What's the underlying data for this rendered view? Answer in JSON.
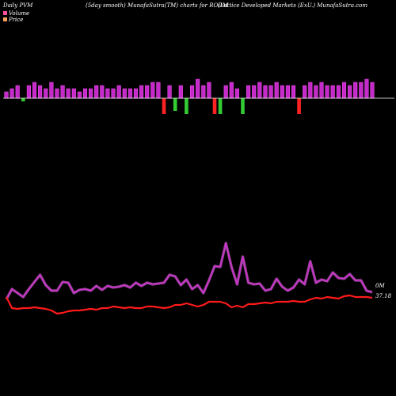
{
  "header": {
    "left": "Daily PVM",
    "center": "(5day smooth) MunafaSutra(TM) charts for RODM",
    "right": "(Lattice  Developed Markets (ExU.) MunafaSutra.com"
  },
  "legend": [
    {
      "label": "Volume",
      "color": "#ff4fa0"
    },
    {
      "label": "Price",
      "color": "#f7a35c"
    }
  ],
  "labels": {
    "volume_last": "0M",
    "price_last": "37.18"
  },
  "colors": {
    "background": "#000000",
    "bar_up": "#c42ac8",
    "bar_down": "#33cc33",
    "bar_up_edge": "#ff55ff",
    "axis_line": "#ffffff",
    "volume_line": "#cc33cc",
    "volume_glow": "#ff77ff",
    "price_line": "#ff1a1a"
  },
  "chart_data": {
    "type": "line",
    "series": [
      {
        "name": "Volume",
        "values": [
          378,
          365,
          370,
          375,
          365,
          356,
          347,
          360,
          367,
          367,
          356,
          357,
          370,
          366,
          365,
          367,
          361,
          366,
          361,
          363,
          362,
          360,
          363,
          357,
          361,
          357,
          359,
          358,
          357,
          347,
          349,
          360,
          353,
          365,
          360,
          370,
          354,
          336,
          337,
          307,
          337,
          359,
          324,
          357,
          359,
          358,
          367,
          365,
          352,
          362,
          367,
          363,
          353,
          359,
          330,
          357,
          353,
          355,
          344,
          351,
          352,
          346,
          354,
          354,
          367,
          369
        ]
      },
      {
        "name": "Price",
        "values": [
          375,
          389,
          390,
          389,
          389,
          388,
          389,
          390,
          392,
          396,
          395,
          393,
          392,
          392,
          391,
          390,
          391,
          389,
          389,
          387,
          388,
          389,
          388,
          389,
          389,
          387,
          387,
          388,
          389,
          388,
          385,
          385,
          383,
          385,
          387,
          385,
          381,
          381,
          381,
          383,
          388,
          386,
          388,
          384,
          384,
          383,
          382,
          383,
          381,
          381,
          381,
          380,
          381,
          381,
          378,
          376,
          377,
          375,
          376,
          377,
          374,
          373,
          375,
          375,
          375,
          376
        ]
      },
      {
        "name": "PVM",
        "values": [
          2,
          3,
          4,
          -1,
          4,
          5,
          4,
          3,
          5,
          3,
          4,
          3,
          3,
          2,
          3,
          3,
          4,
          4,
          3,
          3,
          4,
          3,
          3,
          3,
          4,
          4,
          5,
          5,
          -5,
          4,
          -4,
          4,
          -5,
          4,
          6,
          4,
          5,
          -5,
          -5,
          4,
          5,
          3,
          -5,
          4,
          4,
          5,
          4,
          4,
          5,
          4,
          4,
          4,
          -5,
          4,
          5,
          4,
          5,
          4,
          4,
          4,
          5,
          4,
          5,
          5,
          6,
          5
        ]
      }
    ]
  }
}
